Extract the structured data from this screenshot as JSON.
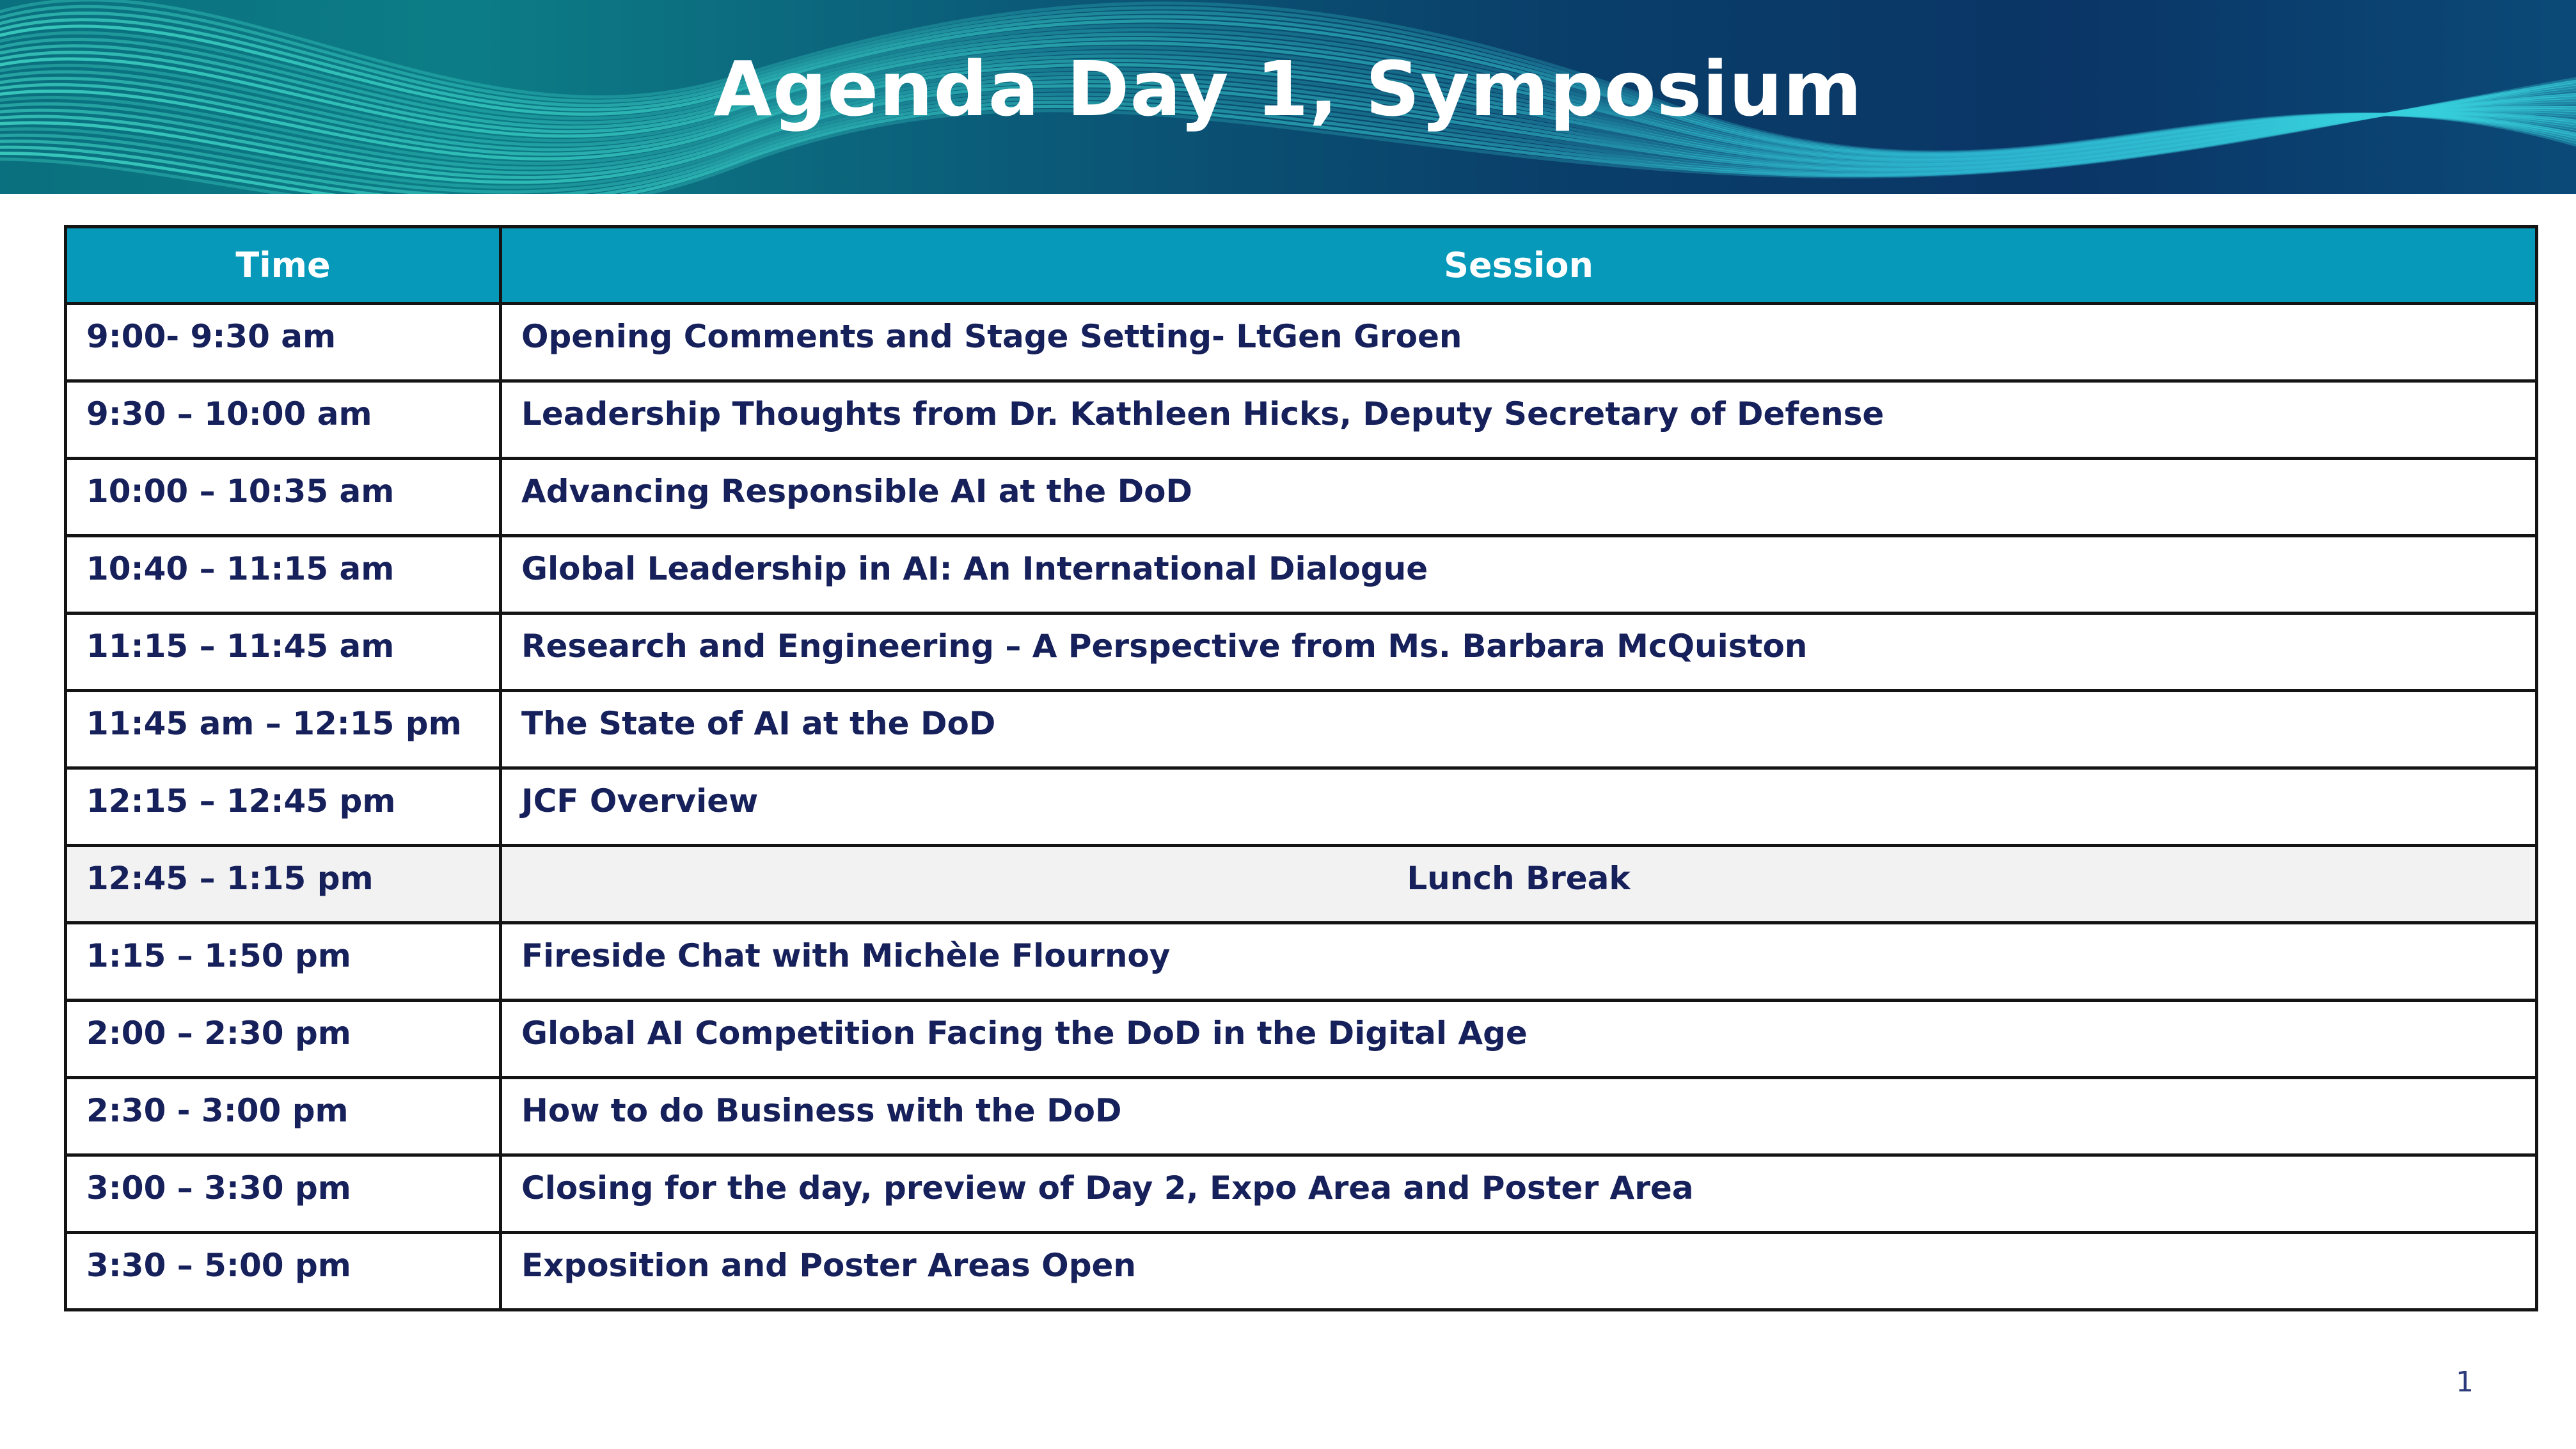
{
  "header": {
    "title": "Agenda Day 1, Symposium"
  },
  "table": {
    "columns": [
      "Time",
      "Session"
    ],
    "rows": [
      {
        "time": "9:00- 9:30 am",
        "session": "Opening Comments and Stage Setting- LtGen Groen"
      },
      {
        "time": "9:30 – 10:00 am",
        "session": "Leadership Thoughts from Dr. Kathleen Hicks, Deputy Secretary of Defense"
      },
      {
        "time": "10:00 – 10:35 am",
        "session": "Advancing Responsible AI at the DoD"
      },
      {
        "time": "10:40 – 11:15 am",
        "session": "Global Leadership in AI: An International Dialogue"
      },
      {
        "time": "11:15 – 11:45 am",
        "session": "Research and Engineering – A Perspective from Ms. Barbara McQuiston"
      },
      {
        "time": "11:45 am – 12:15 pm",
        "session": "The State of AI at the DoD"
      },
      {
        "time": "12:15 – 12:45 pm",
        "session": "JCF Overview"
      },
      {
        "time": "12:45 – 1:15 pm",
        "session": "Lunch Break",
        "highlight": true
      },
      {
        "time": "1:15 – 1:50 pm",
        "session": "Fireside Chat with Michèle Flournoy"
      },
      {
        "time": "2:00 – 2:30 pm",
        "session": "Global AI Competition Facing the DoD in the Digital Age"
      },
      {
        "time": "2:30 -  3:00 pm",
        "session": "How to do Business with the DoD"
      },
      {
        "time": "3:00 – 3:30 pm",
        "session": "Closing for the day, preview of Day 2, Expo Area and Poster Area"
      },
      {
        "time": "3:30 – 5:00 pm",
        "session": "Exposition and Poster Areas Open"
      }
    ]
  },
  "footer": {
    "page_number": "1"
  },
  "colors": {
    "header_bg": "#0699ba",
    "text": "#16205a",
    "highlight_row": "#f2f2f2",
    "banner_lines": "#3fe0d0"
  }
}
